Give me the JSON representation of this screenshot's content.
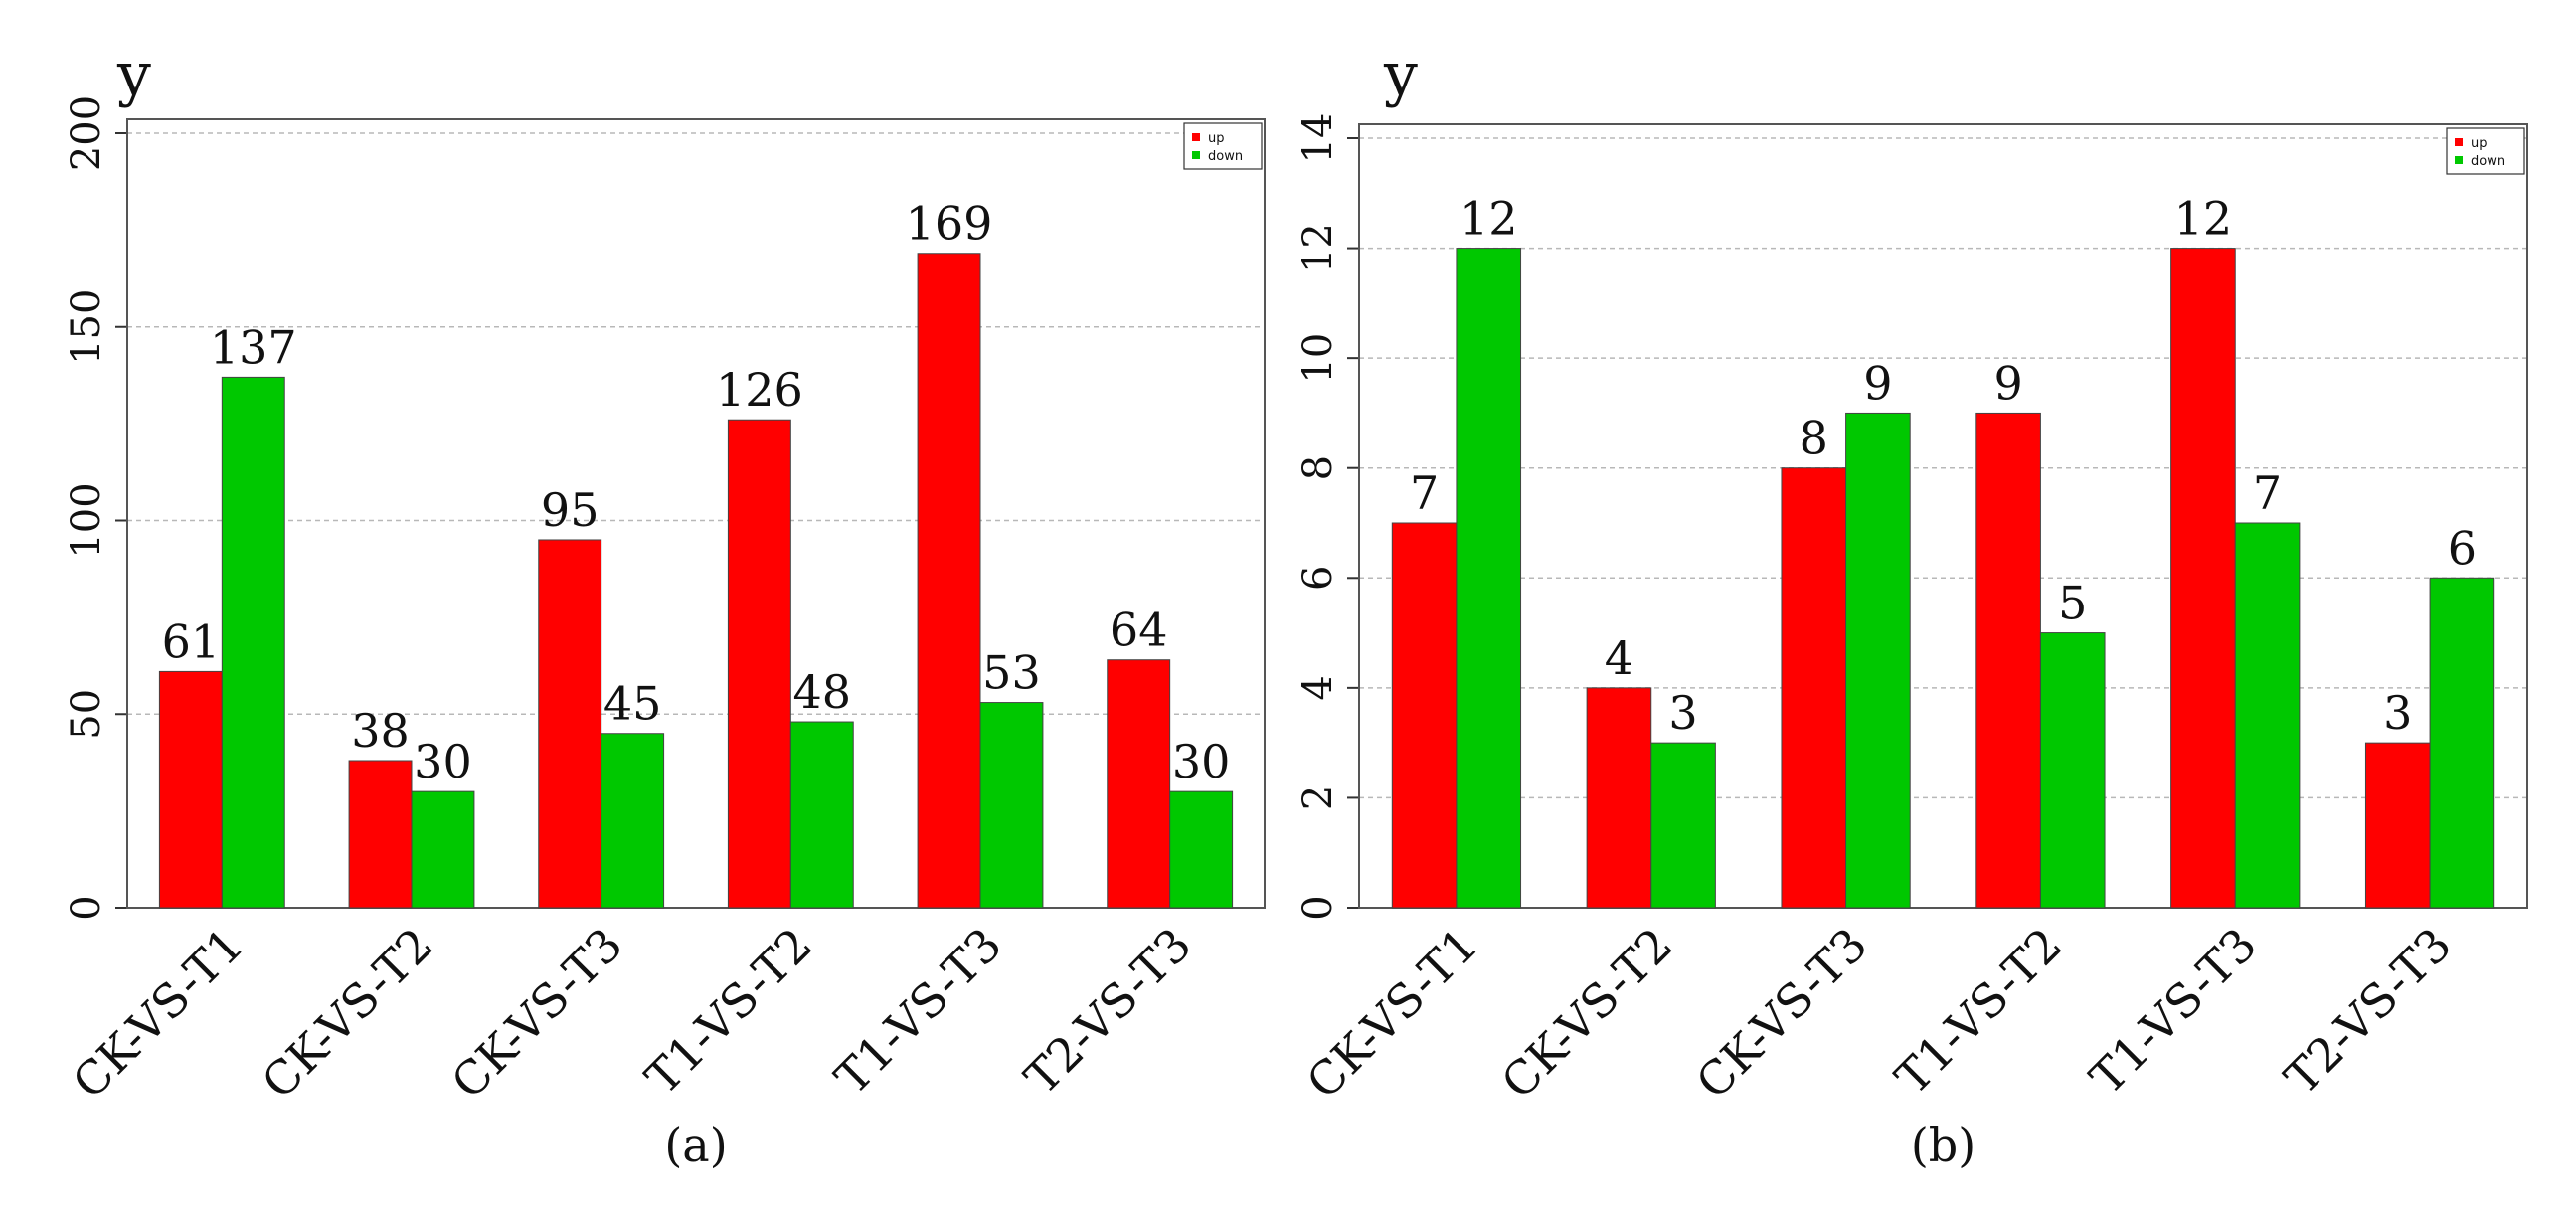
{
  "colors": {
    "up": "#ff0000",
    "down": "#00c800"
  },
  "chart_data": [
    {
      "type": "bar",
      "panel_label": "(a)",
      "ylabel": "y",
      "categories": [
        "CK-VS-T1",
        "CK-VS-T2",
        "CK-VS-T3",
        "T1-VS-T2",
        "T1-VS-T3",
        "T2-VS-T3"
      ],
      "series": [
        {
          "name": "up",
          "color": "#ff0000",
          "values": [
            61,
            38,
            95,
            126,
            169,
            64
          ]
        },
        {
          "name": "down",
          "color": "#00c800",
          "values": [
            137,
            30,
            45,
            48,
            53,
            30
          ]
        }
      ],
      "ylim": [
        0,
        200
      ],
      "yticks": [
        0,
        50,
        100,
        150,
        200
      ],
      "grid": true,
      "legend_position": "top-right"
    },
    {
      "type": "bar",
      "panel_label": "(b)",
      "ylabel": "y",
      "categories": [
        "CK-VS-T1",
        "CK-VS-T2",
        "CK-VS-T3",
        "T1-VS-T2",
        "T1-VS-T3",
        "T2-VS-T3"
      ],
      "series": [
        {
          "name": "up",
          "color": "#ff0000",
          "values": [
            7,
            4,
            8,
            9,
            12,
            3
          ]
        },
        {
          "name": "down",
          "color": "#00c800",
          "values": [
            12,
            3,
            9,
            5,
            7,
            6
          ]
        }
      ],
      "ylim": [
        0,
        14
      ],
      "yticks": [
        0,
        2,
        4,
        6,
        8,
        10,
        12,
        14
      ],
      "grid": true,
      "legend_position": "top-right"
    }
  ]
}
